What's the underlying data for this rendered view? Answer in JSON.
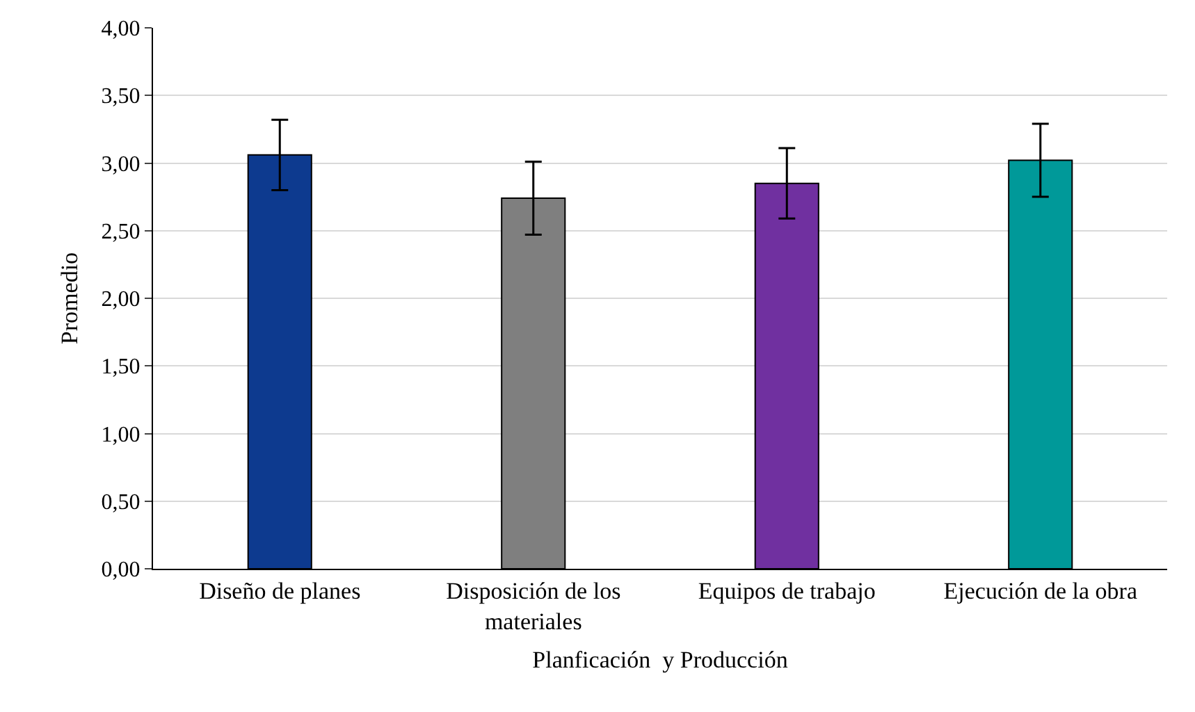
{
  "chart_data": {
    "type": "bar",
    "xlabel": "Planficación  y Producción",
    "ylabel": "Promedio",
    "categories": [
      "Diseño de planes",
      "Disposición de los materiales",
      "Equipos de trabajo",
      "Ejecución de la obra"
    ],
    "values": [
      3.06,
      2.74,
      2.85,
      3.02
    ],
    "colors": [
      "#0d3a8f",
      "#7f7f7f",
      "#7030a0",
      "#009999"
    ],
    "errors": [
      0.26,
      0.27,
      0.26,
      0.27
    ],
    "ylim": [
      0,
      4
    ],
    "yticks": [
      {
        "value": 0,
        "label": "0,00"
      },
      {
        "value": 0.5,
        "label": "0,50"
      },
      {
        "value": 1,
        "label": "1,00"
      },
      {
        "value": 1.5,
        "label": "1,50"
      },
      {
        "value": 2,
        "label": "2,00"
      },
      {
        "value": 2.5,
        "label": "2,50"
      },
      {
        "value": 3,
        "label": "3,00"
      },
      {
        "value": 3.5,
        "label": "3,50"
      },
      {
        "value": 4,
        "label": "4,00"
      }
    ],
    "grid": "y"
  }
}
